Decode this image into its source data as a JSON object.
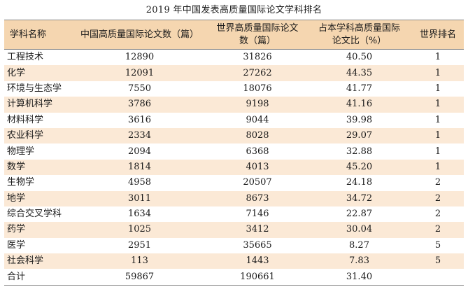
{
  "title": "2019 年中国发表高质量国际论文学科排名",
  "headers": [
    "学科名称",
    "中国高质量国际论文数（篇）",
    "世界高质量国际论文\n数（篇）",
    "占本学科高质量国际\n论文比（%）",
    "世界排名"
  ],
  "rows": [
    {
      "subject": "工程技术",
      "china": "12890",
      "world": "31826",
      "ratio": "40.50",
      "rank": "1"
    },
    {
      "subject": "化学",
      "china": "12091",
      "world": "27262",
      "ratio": "44.35",
      "rank": "1"
    },
    {
      "subject": "环境与生态学",
      "china": "7550",
      "world": "18076",
      "ratio": "41.77",
      "rank": "1"
    },
    {
      "subject": "计算机科学",
      "china": "3786",
      "world": "9198",
      "ratio": "41.16",
      "rank": "1"
    },
    {
      "subject": "材料科学",
      "china": "3616",
      "world": "9044",
      "ratio": "39.98",
      "rank": "1"
    },
    {
      "subject": "农业科学",
      "china": "2334",
      "world": "8028",
      "ratio": "29.07",
      "rank": "1"
    },
    {
      "subject": "物理学",
      "china": "2094",
      "world": "6368",
      "ratio": "32.88",
      "rank": "1"
    },
    {
      "subject": "数学",
      "china": "1814",
      "world": "4013",
      "ratio": "45.20",
      "rank": "1"
    },
    {
      "subject": "生物学",
      "china": "4958",
      "world": "20507",
      "ratio": "24.18",
      "rank": "2"
    },
    {
      "subject": "地学",
      "china": "3011",
      "world": "8673",
      "ratio": "34.72",
      "rank": "2"
    },
    {
      "subject": "综合交叉学科",
      "china": "1634",
      "world": "7146",
      "ratio": "22.87",
      "rank": "2"
    },
    {
      "subject": "药学",
      "china": "1025",
      "world": "3412",
      "ratio": "30.04",
      "rank": "2"
    },
    {
      "subject": "医学",
      "china": "2951",
      "world": "35665",
      "ratio": "8.27",
      "rank": "5"
    },
    {
      "subject": "社会科学",
      "china": "113",
      "world": "1443",
      "ratio": "7.83",
      "rank": "5"
    },
    {
      "subject": "合计",
      "china": "59867",
      "world": "190661",
      "ratio": "31.40",
      "rank": ""
    }
  ],
  "colors": {
    "header_bg": "#f5d6b0",
    "stripe_bg": "#fbe9d6",
    "rule": "#8a8a8a"
  }
}
